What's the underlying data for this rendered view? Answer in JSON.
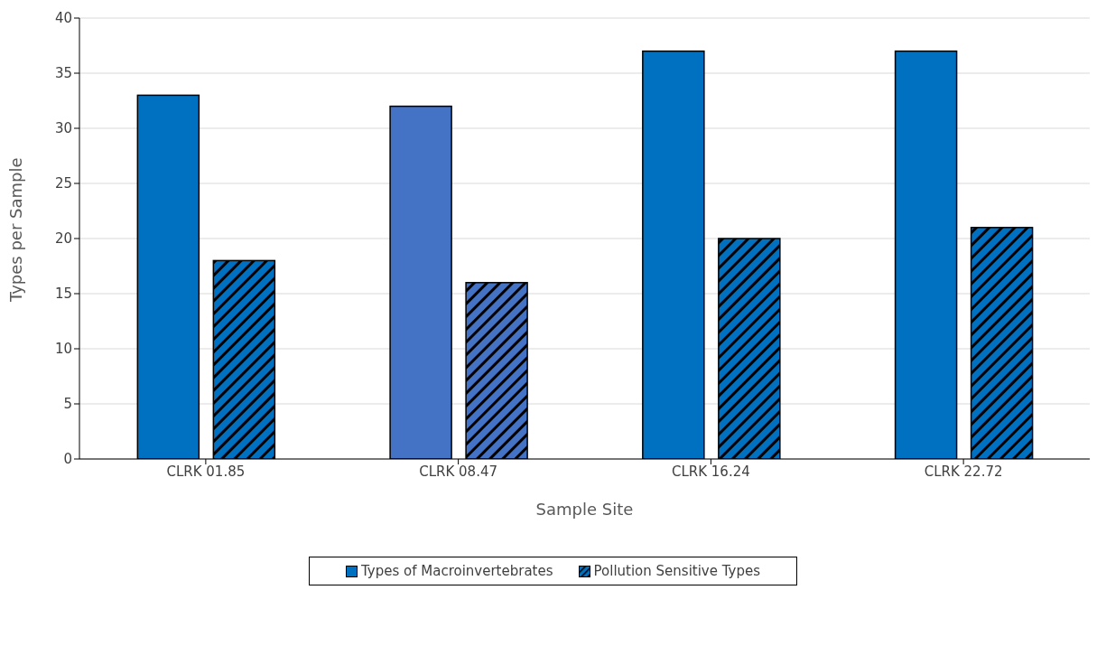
{
  "chart_data": {
    "type": "bar",
    "xlabel": "Sample Site",
    "ylabel": "Types per Sample",
    "categories": [
      "CLRK 01.85",
      "CLRK 08.47",
      "CLRK 16.24",
      "CLRK 22.72"
    ],
    "series": [
      {
        "name": "Types of Macroinvertebrates",
        "color": "#0070c0",
        "colors": [
          "#0070c0",
          "#4472c4",
          "#0070c0",
          "#0070c0"
        ],
        "values": [
          33,
          32,
          37,
          37
        ]
      },
      {
        "name": "Pollution Sensitive Types",
        "color": "#0070c0",
        "colors": [
          "#0070c0",
          "#4472c4",
          "#0070c0",
          "#0070c0"
        ],
        "values": [
          18,
          16,
          20,
          21
        ]
      }
    ],
    "ylim": [
      0,
      40
    ],
    "yticks": [
      0,
      5,
      10,
      15,
      20,
      25,
      30,
      35,
      40
    ],
    "grid": "y",
    "legend": "bottom"
  }
}
